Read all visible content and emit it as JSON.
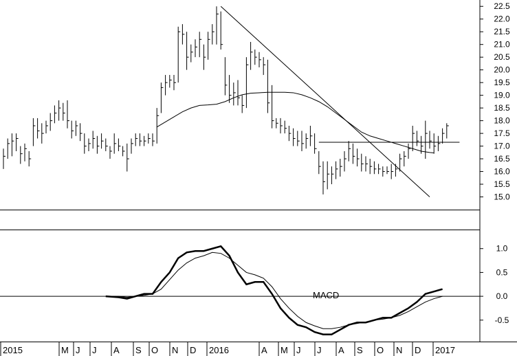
{
  "chart_data": [
    {
      "type": "ohlc",
      "panel": "price",
      "ylim": [
        14.5,
        22.75
      ],
      "yticks": [
        "15.0",
        "15.5",
        "16.0",
        "16.5",
        "17.0",
        "17.5",
        "18.0",
        "18.5",
        "19.0",
        "19.5",
        "20.0",
        "20.5",
        "21.0",
        "21.5",
        "22.0",
        "22.5"
      ],
      "x_labels": [
        "2015",
        "M",
        "J",
        "J",
        "A",
        "S",
        "O",
        "N",
        "D",
        "2016",
        "A",
        "M",
        "J",
        "J",
        "A",
        "S",
        "O",
        "N",
        "D",
        "2017"
      ],
      "bars": [
        {
          "h": 16.9,
          "l": 16.1,
          "c": 16.6
        },
        {
          "h": 17.3,
          "l": 16.5,
          "c": 17.1
        },
        {
          "h": 17.5,
          "l": 16.6,
          "c": 17.2
        },
        {
          "h": 17.5,
          "l": 16.8,
          "c": 17.3
        },
        {
          "h": 17.0,
          "l": 16.3,
          "c": 16.7
        },
        {
          "h": 17.1,
          "l": 16.4,
          "c": 16.9
        },
        {
          "h": 16.8,
          "l": 16.2,
          "c": 16.5
        },
        {
          "h": 18.1,
          "l": 17.0,
          "c": 17.8
        },
        {
          "h": 18.1,
          "l": 17.3,
          "c": 17.6
        },
        {
          "h": 17.9,
          "l": 17.1,
          "c": 17.5
        },
        {
          "h": 18.0,
          "l": 17.5,
          "c": 17.8
        },
        {
          "h": 18.3,
          "l": 17.6,
          "c": 18.0
        },
        {
          "h": 18.6,
          "l": 17.9,
          "c": 18.3
        },
        {
          "h": 18.8,
          "l": 18.0,
          "c": 18.5
        },
        {
          "h": 18.7,
          "l": 18.0,
          "c": 18.3
        },
        {
          "h": 18.8,
          "l": 17.7,
          "c": 18.0
        },
        {
          "h": 18.0,
          "l": 17.3,
          "c": 17.6
        },
        {
          "h": 18.0,
          "l": 17.4,
          "c": 17.8
        },
        {
          "h": 17.9,
          "l": 17.2,
          "c": 17.5
        },
        {
          "h": 17.5,
          "l": 16.7,
          "c": 17.0
        },
        {
          "h": 17.3,
          "l": 16.8,
          "c": 17.1
        },
        {
          "h": 17.6,
          "l": 16.9,
          "c": 17.3
        },
        {
          "h": 17.4,
          "l": 16.7,
          "c": 17.0
        },
        {
          "h": 17.5,
          "l": 16.9,
          "c": 17.2
        },
        {
          "h": 17.3,
          "l": 16.8,
          "c": 17.0
        },
        {
          "h": 17.0,
          "l": 16.5,
          "c": 16.8
        },
        {
          "h": 17.5,
          "l": 16.7,
          "c": 17.1
        },
        {
          "h": 17.3,
          "l": 16.8,
          "c": 17.0
        },
        {
          "h": 17.0,
          "l": 16.6,
          "c": 16.8
        },
        {
          "h": 17.1,
          "l": 16.0,
          "c": 16.5
        },
        {
          "h": 17.3,
          "l": 16.7,
          "c": 17.1
        },
        {
          "h": 17.5,
          "l": 17.0,
          "c": 17.3
        },
        {
          "h": 17.5,
          "l": 17.0,
          "c": 17.2
        },
        {
          "h": 17.4,
          "l": 17.0,
          "c": 17.2
        },
        {
          "h": 17.5,
          "l": 17.1,
          "c": 17.3
        },
        {
          "h": 17.5,
          "l": 17.0,
          "c": 17.2
        },
        {
          "h": 18.5,
          "l": 17.1,
          "c": 18.2
        },
        {
          "h": 19.5,
          "l": 18.3,
          "c": 19.3
        },
        {
          "h": 19.8,
          "l": 19.0,
          "c": 19.5
        },
        {
          "h": 19.8,
          "l": 19.3,
          "c": 19.6
        },
        {
          "h": 19.8,
          "l": 19.2,
          "c": 19.5
        },
        {
          "h": 21.7,
          "l": 19.5,
          "c": 21.5
        },
        {
          "h": 21.8,
          "l": 21.0,
          "c": 21.4
        },
        {
          "h": 21.5,
          "l": 20.0,
          "c": 20.5
        },
        {
          "h": 21.0,
          "l": 20.3,
          "c": 20.7
        },
        {
          "h": 21.2,
          "l": 20.5,
          "c": 20.9
        },
        {
          "h": 21.5,
          "l": 20.5,
          "c": 21.2
        },
        {
          "h": 21.0,
          "l": 20.0,
          "c": 20.5
        },
        {
          "h": 21.5,
          "l": 20.4,
          "c": 21.2
        },
        {
          "h": 21.8,
          "l": 21.0,
          "c": 21.5
        },
        {
          "h": 22.5,
          "l": 21.0,
          "c": 22.2
        },
        {
          "h": 22.3,
          "l": 20.8,
          "c": 21.0
        },
        {
          "h": 20.5,
          "l": 19.0,
          "c": 19.4
        },
        {
          "h": 19.8,
          "l": 18.7,
          "c": 19.0
        },
        {
          "h": 19.5,
          "l": 18.6,
          "c": 19.1
        },
        {
          "h": 19.6,
          "l": 18.6,
          "c": 18.9
        },
        {
          "h": 19.0,
          "l": 18.3,
          "c": 18.6
        },
        {
          "h": 20.5,
          "l": 18.5,
          "c": 20.2
        },
        {
          "h": 21.1,
          "l": 20.0,
          "c": 20.7
        },
        {
          "h": 20.8,
          "l": 20.2,
          "c": 20.5
        },
        {
          "h": 20.7,
          "l": 20.1,
          "c": 20.4
        },
        {
          "h": 20.5,
          "l": 19.8,
          "c": 20.2
        },
        {
          "h": 20.4,
          "l": 18.3,
          "c": 18.7
        },
        {
          "h": 19.4,
          "l": 17.7,
          "c": 18.0
        },
        {
          "h": 18.1,
          "l": 17.7,
          "c": 17.9
        },
        {
          "h": 18.1,
          "l": 17.5,
          "c": 17.8
        },
        {
          "h": 18.0,
          "l": 17.5,
          "c": 17.7
        },
        {
          "h": 17.8,
          "l": 17.2,
          "c": 17.5
        },
        {
          "h": 17.7,
          "l": 17.0,
          "c": 17.3
        },
        {
          "h": 17.6,
          "l": 17.0,
          "c": 17.2
        },
        {
          "h": 17.6,
          "l": 16.8,
          "c": 17.1
        },
        {
          "h": 17.5,
          "l": 16.9,
          "c": 17.3
        },
        {
          "h": 17.8,
          "l": 17.0,
          "c": 17.4
        },
        {
          "h": 17.5,
          "l": 16.7,
          "c": 16.9
        },
        {
          "h": 16.8,
          "l": 15.9,
          "c": 16.2
        },
        {
          "h": 16.4,
          "l": 15.1,
          "c": 15.6
        },
        {
          "h": 16.4,
          "l": 15.3,
          "c": 15.9
        },
        {
          "h": 16.2,
          "l": 15.5,
          "c": 15.9
        },
        {
          "h": 16.4,
          "l": 15.7,
          "c": 16.1
        },
        {
          "h": 16.5,
          "l": 15.8,
          "c": 16.2
        },
        {
          "h": 16.8,
          "l": 16.0,
          "c": 16.5
        },
        {
          "h": 17.2,
          "l": 16.4,
          "c": 16.9
        },
        {
          "h": 17.1,
          "l": 16.3,
          "c": 16.6
        },
        {
          "h": 16.9,
          "l": 16.2,
          "c": 16.5
        },
        {
          "h": 16.7,
          "l": 16.0,
          "c": 16.3
        },
        {
          "h": 16.6,
          "l": 16.0,
          "c": 16.3
        },
        {
          "h": 16.5,
          "l": 15.9,
          "c": 16.2
        },
        {
          "h": 16.4,
          "l": 15.9,
          "c": 16.1
        },
        {
          "h": 16.3,
          "l": 15.9,
          "c": 16.1
        },
        {
          "h": 16.2,
          "l": 15.8,
          "c": 16.0
        },
        {
          "h": 16.2,
          "l": 15.9,
          "c": 16.0
        },
        {
          "h": 16.3,
          "l": 15.7,
          "c": 16.0
        },
        {
          "h": 16.3,
          "l": 15.8,
          "c": 16.1
        },
        {
          "h": 16.7,
          "l": 16.0,
          "c": 16.5
        },
        {
          "h": 16.8,
          "l": 16.2,
          "c": 16.6
        },
        {
          "h": 17.1,
          "l": 16.5,
          "c": 16.9
        },
        {
          "h": 17.8,
          "l": 16.8,
          "c": 17.5
        },
        {
          "h": 17.6,
          "l": 17.0,
          "c": 17.2
        },
        {
          "h": 17.4,
          "l": 16.7,
          "c": 17.0
        },
        {
          "h": 18.0,
          "l": 16.5,
          "c": 17.5
        },
        {
          "h": 17.6,
          "l": 16.9,
          "c": 17.2
        },
        {
          "h": 17.5,
          "l": 16.7,
          "c": 17.0
        },
        {
          "h": 17.4,
          "l": 16.8,
          "c": 17.1
        },
        {
          "h": 17.7,
          "l": 17.1,
          "c": 17.5
        },
        {
          "h": 17.9,
          "l": 17.3,
          "c": 17.8
        }
      ],
      "moving_average": [
        [
          36,
          17.75
        ],
        [
          38,
          17.95
        ],
        [
          40,
          18.15
        ],
        [
          42,
          18.35
        ],
        [
          44,
          18.5
        ],
        [
          46,
          18.6
        ],
        [
          48,
          18.62
        ],
        [
          50,
          18.65
        ],
        [
          52,
          18.75
        ],
        [
          54,
          18.9
        ],
        [
          56,
          19.02
        ],
        [
          58,
          19.08
        ],
        [
          60,
          19.1
        ],
        [
          62,
          19.12
        ],
        [
          64,
          19.12
        ],
        [
          66,
          19.12
        ],
        [
          68,
          19.1
        ],
        [
          70,
          19.02
        ],
        [
          72,
          18.9
        ],
        [
          74,
          18.75
        ],
        [
          76,
          18.55
        ],
        [
          78,
          18.3
        ],
        [
          80,
          18.05
        ],
        [
          82,
          17.8
        ],
        [
          84,
          17.55
        ],
        [
          86,
          17.4
        ],
        [
          88,
          17.3
        ],
        [
          90,
          17.2
        ],
        [
          92,
          17.1
        ],
        [
          94,
          17.0
        ],
        [
          96,
          16.9
        ],
        [
          98,
          16.8
        ],
        [
          100,
          16.75
        ],
        [
          101,
          16.73
        ]
      ],
      "trendline": [
        [
          51,
          22.5
        ],
        [
          100,
          15.0
        ]
      ],
      "support_line": [
        [
          74,
          17.15
        ],
        [
          107,
          17.15
        ]
      ]
    },
    {
      "type": "line",
      "panel": "indicator",
      "annotation": "MACD",
      "ylim": [
        -0.95,
        1.4
      ],
      "yticks": [
        "-0.5",
        "0.0",
        "0.5",
        "1.0"
      ],
      "zero_line": 0.0,
      "series": [
        {
          "values": [
            [
              24,
              0.0
            ],
            [
              27,
              -0.02
            ],
            [
              29,
              -0.05
            ],
            [
              31,
              0.0
            ],
            [
              33,
              0.05
            ],
            [
              35,
              0.05
            ],
            [
              37,
              0.3
            ],
            [
              39,
              0.5
            ],
            [
              41,
              0.8
            ],
            [
              43,
              0.92
            ],
            [
              45,
              0.95
            ],
            [
              47,
              0.95
            ],
            [
              49,
              1.0
            ],
            [
              51,
              1.05
            ],
            [
              53,
              0.85
            ],
            [
              55,
              0.5
            ],
            [
              57,
              0.25
            ],
            [
              59,
              0.3
            ],
            [
              61,
              0.3
            ],
            [
              63,
              0.05
            ],
            [
              65,
              -0.25
            ],
            [
              67,
              -0.45
            ],
            [
              69,
              -0.6
            ],
            [
              71,
              -0.65
            ],
            [
              73,
              -0.75
            ],
            [
              75,
              -0.8
            ],
            [
              77,
              -0.8
            ],
            [
              79,
              -0.7
            ],
            [
              81,
              -0.6
            ],
            [
              83,
              -0.55
            ],
            [
              85,
              -0.55
            ],
            [
              87,
              -0.5
            ],
            [
              89,
              -0.45
            ],
            [
              91,
              -0.45
            ],
            [
              93,
              -0.35
            ],
            [
              95,
              -0.25
            ],
            [
              97,
              -0.12
            ],
            [
              99,
              0.05
            ],
            [
              101,
              0.1
            ],
            [
              103,
              0.15
            ]
          ]
        },
        {
          "values": [
            [
              24,
              0.0
            ],
            [
              27,
              0.0
            ],
            [
              29,
              -0.02
            ],
            [
              31,
              0.0
            ],
            [
              33,
              0.02
            ],
            [
              35,
              0.05
            ],
            [
              37,
              0.15
            ],
            [
              39,
              0.35
            ],
            [
              41,
              0.55
            ],
            [
              43,
              0.7
            ],
            [
              45,
              0.8
            ],
            [
              47,
              0.85
            ],
            [
              49,
              0.92
            ],
            [
              51,
              0.9
            ],
            [
              53,
              0.8
            ],
            [
              55,
              0.65
            ],
            [
              57,
              0.5
            ],
            [
              59,
              0.45
            ],
            [
              61,
              0.38
            ],
            [
              63,
              0.2
            ],
            [
              65,
              -0.05
            ],
            [
              67,
              -0.25
            ],
            [
              69,
              -0.42
            ],
            [
              71,
              -0.55
            ],
            [
              73,
              -0.62
            ],
            [
              75,
              -0.68
            ],
            [
              77,
              -0.68
            ],
            [
              79,
              -0.65
            ],
            [
              81,
              -0.6
            ],
            [
              83,
              -0.57
            ],
            [
              85,
              -0.54
            ],
            [
              87,
              -0.5
            ],
            [
              89,
              -0.48
            ],
            [
              91,
              -0.45
            ],
            [
              93,
              -0.4
            ],
            [
              95,
              -0.32
            ],
            [
              97,
              -0.22
            ],
            [
              99,
              -0.12
            ],
            [
              101,
              -0.05
            ],
            [
              103,
              0.0
            ]
          ]
        }
      ]
    }
  ]
}
